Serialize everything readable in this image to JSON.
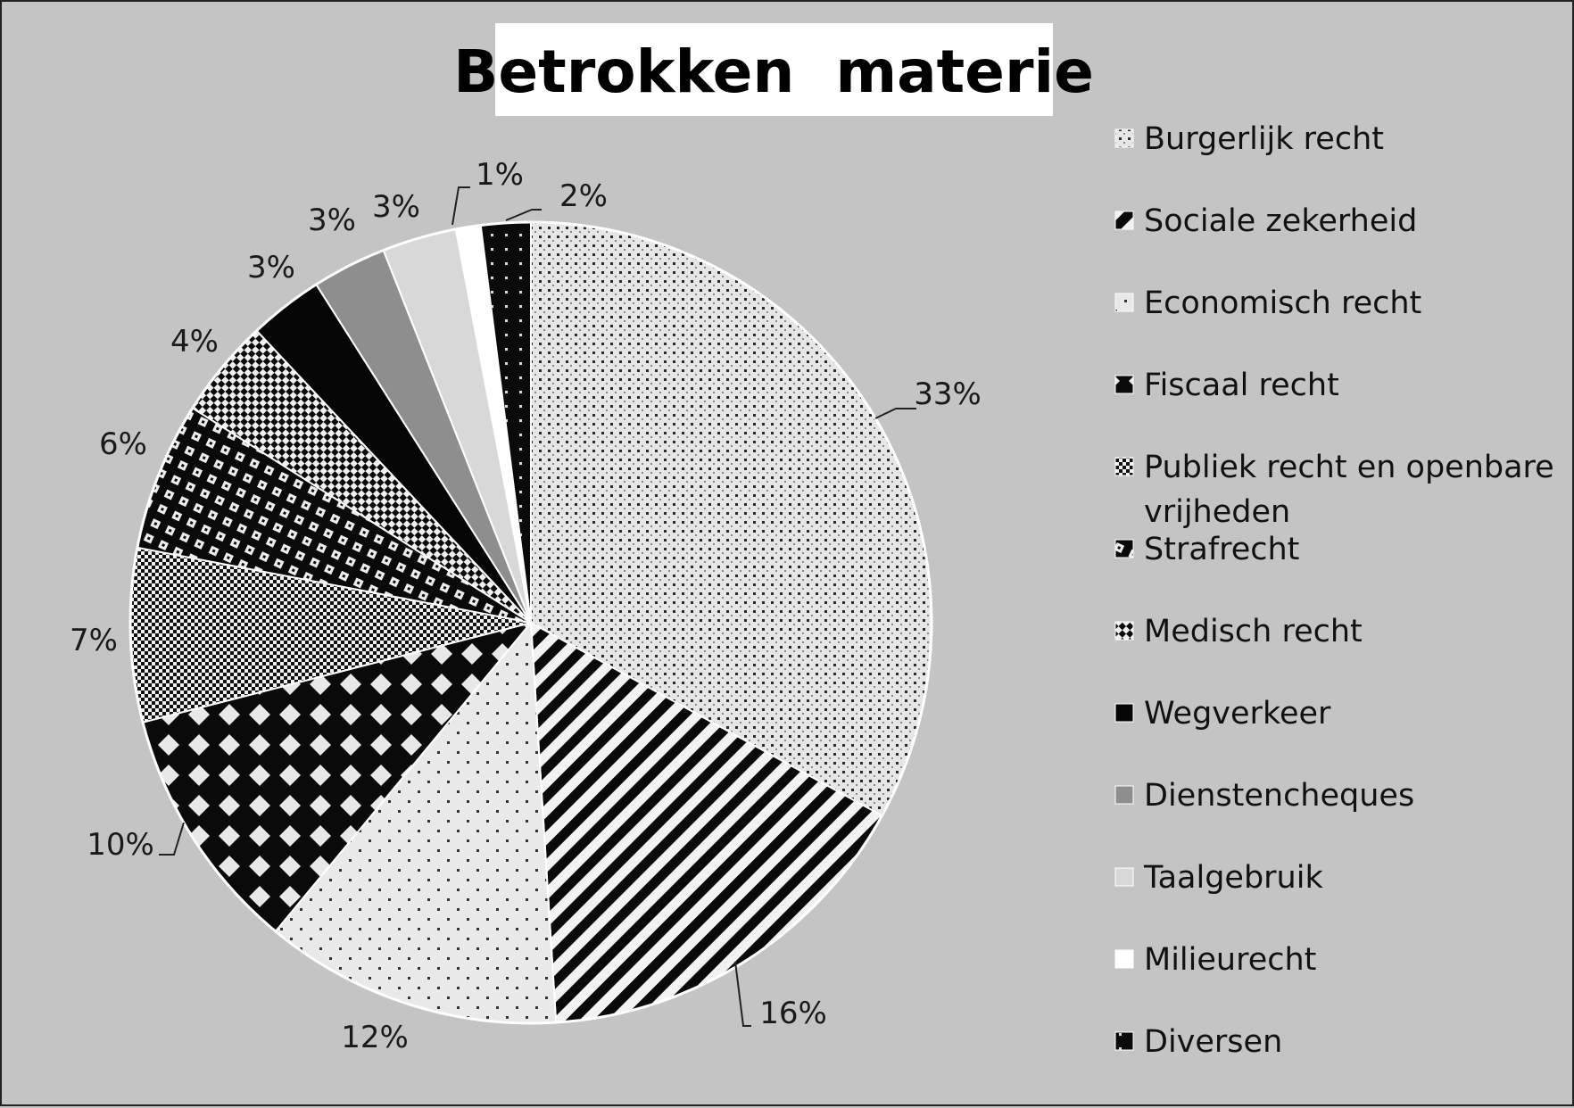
{
  "chart_data": {
    "type": "pie",
    "title": "Betrokken  materie",
    "start_angle_deg": 0,
    "direction": "clockwise",
    "legend_position": "right",
    "slices": [
      {
        "label": "Burgerlijk recht",
        "value": 33,
        "value_label": "33%",
        "pattern": "fine-dots"
      },
      {
        "label": "Sociale zekerheid",
        "value": 16,
        "value_label": "16%",
        "pattern": "diag-stripes"
      },
      {
        "label": "Economisch recht",
        "value": 12,
        "value_label": "12%",
        "pattern": "sparse-dots"
      },
      {
        "label": "Fiscaal recht",
        "value": 10,
        "value_label": "10%",
        "pattern": "diamonds"
      },
      {
        "label": "Publiek recht en openbare vrijheden",
        "value": 7,
        "value_label": "7%",
        "pattern": "checker"
      },
      {
        "label": "Strafrecht",
        "value": 6,
        "value_label": "6%",
        "pattern": "squares"
      },
      {
        "label": "Medisch recht",
        "value": 4,
        "value_label": "4%",
        "pattern": "diag-checker"
      },
      {
        "label": "Wegverkeer",
        "value": 3,
        "value_label": "3%",
        "pattern": "solid-black"
      },
      {
        "label": "Dienstencheques",
        "value": 3,
        "value_label": "3%",
        "pattern": "solid-gray"
      },
      {
        "label": "Taalgebruik",
        "value": 3,
        "value_label": "3%",
        "pattern": "solid-light"
      },
      {
        "label": "Milieurecht",
        "value": 1,
        "value_label": "1%",
        "pattern": "solid-white"
      },
      {
        "label": "Diversen",
        "value": 2,
        "value_label": "2%",
        "pattern": "black-dots"
      }
    ],
    "colors": {
      "background": "#c4c4c4",
      "title_box": "#ffffff",
      "slice_border": "#ffffff"
    }
  }
}
